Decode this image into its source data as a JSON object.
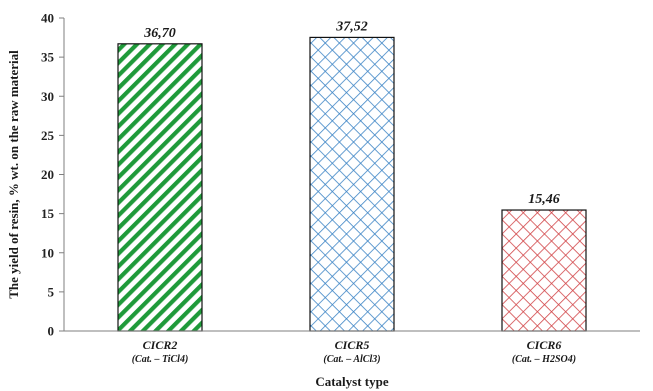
{
  "chart_data": {
    "type": "bar",
    "title": "",
    "xlabel": "Catalyst type",
    "ylabel": "The yield of resin, % wt. on the raw material",
    "ylim": [
      0,
      40
    ],
    "yticks": [
      0,
      5,
      10,
      15,
      20,
      25,
      30,
      35,
      40
    ],
    "grid": false,
    "categories": [
      "CICR2",
      "CICR5",
      "CICR6"
    ],
    "category_sublabels": [
      "(Cat. – TiCl4)",
      "(Cat. – AlCl3)",
      "(Cat. – H2SO4)"
    ],
    "values": [
      36.7,
      37.52,
      15.46
    ],
    "value_labels": [
      "36,70",
      "37,52",
      "15,46"
    ],
    "colors": [
      "#1f9a3a",
      "#3f86c6",
      "#d2474a"
    ],
    "patterns": [
      "diagonal-hatch",
      "diamond-crosshatch",
      "diamond-crosshatch"
    ]
  }
}
